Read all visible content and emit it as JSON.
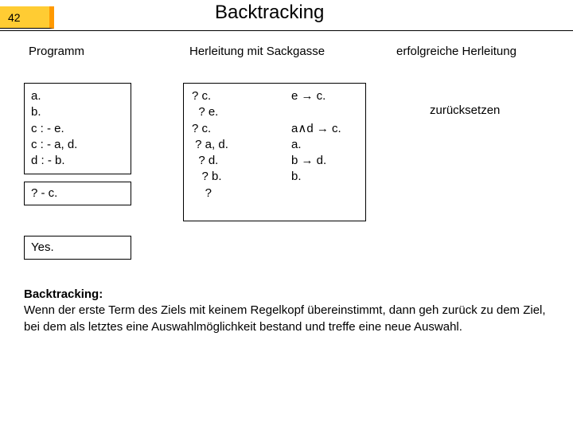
{
  "slide_number": "42",
  "title": "Backtracking",
  "headings": {
    "programm": "Programm",
    "herleitung": "Herleitung mit Sackgasse",
    "erfolgreiche": "erfolgreiche Herleitung"
  },
  "program_box": "a.\nb.\nc : - e.\nc : - a, d.\nd : - b.",
  "query_box": "? - c.",
  "yes_box": "Yes.",
  "trace_left": "? c.\n  ? e.\n? c.\n ? a, d.\n  ? d.\n   ? b.\n    ?",
  "trace_right": "e → c.\n\na∧d → c.\na.\nb → d.\nb.",
  "zurueck": "zurücksetzen",
  "bottom_bold": "Backtracking:",
  "bottom_text": "Wenn der erste Term des Ziels mit keinem Regelkopf übereinstimmt, dann geh zurück zu dem Ziel, bei dem als letztes eine Auswahlmöglichkeit bestand und treffe eine neue Auswahl.",
  "colors": {
    "slide_number_bg": "#ffcc33",
    "slide_number_border": "#ff9900",
    "text": "#000000",
    "background": "#ffffff"
  }
}
